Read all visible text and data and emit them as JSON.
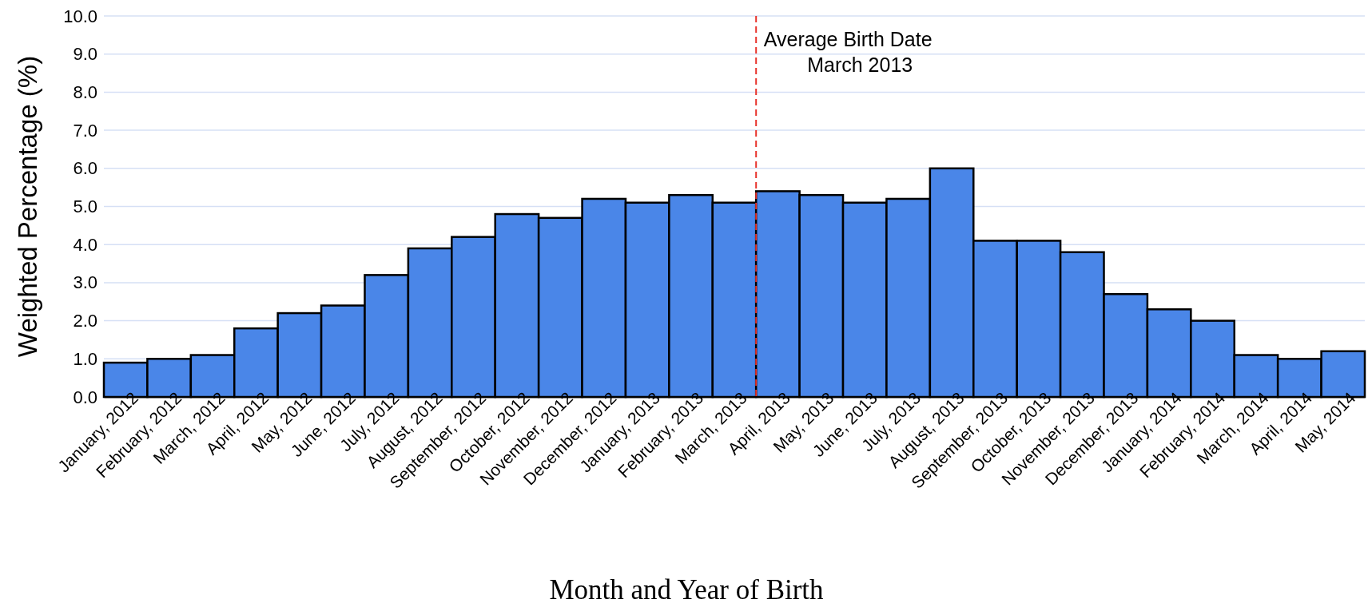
{
  "chart_data": {
    "type": "bar",
    "xlabel": "Month and Year of Birth",
    "ylabel": "Weighted Percentage (%)",
    "categories": [
      "January, 2012",
      "February, 2012",
      "March, 2012",
      "April, 2012",
      "May, 2012",
      "June, 2012",
      "July, 2012",
      "August, 2012",
      "September, 2012",
      "October, 2012",
      "November, 2012",
      "December, 2012",
      "January, 2013",
      "February, 2013",
      "March, 2013",
      "April, 2013",
      "May, 2013",
      "June, 2013",
      "July, 2013",
      "August, 2013",
      "September, 2013",
      "October, 2013",
      "November, 2013",
      "December, 2013",
      "January, 2014",
      "February, 2014",
      "March, 2014",
      "April, 2014",
      "May, 2014"
    ],
    "values": [
      0.9,
      1.0,
      1.1,
      1.8,
      2.2,
      2.4,
      3.2,
      3.9,
      4.2,
      4.8,
      4.7,
      5.2,
      5.1,
      5.3,
      5.1,
      5.4,
      5.3,
      5.1,
      5.2,
      6.0,
      4.1,
      4.1,
      3.8,
      2.7,
      2.3,
      2.0,
      1.1,
      1.0,
      1.2
    ],
    "color": "#4a86e8",
    "ylim": [
      0,
      10
    ],
    "yticks": [
      {
        "value": 0,
        "label": "0.0"
      },
      {
        "value": 1,
        "label": "1.0"
      },
      {
        "value": 2,
        "label": "2.0"
      },
      {
        "value": 3,
        "label": "3.0"
      },
      {
        "value": 4,
        "label": "4.0"
      },
      {
        "value": 5,
        "label": "5.0"
      },
      {
        "value": 6,
        "label": "6.0"
      },
      {
        "value": 7,
        "label": "7.0"
      },
      {
        "value": 8,
        "label": "8.0"
      },
      {
        "value": 9,
        "label": "9.0"
      },
      {
        "value": 10,
        "label": "10.0"
      }
    ],
    "grid": "y",
    "ref_lines": [
      {
        "axis": "x",
        "value": "March, 2013",
        "label": "Average Birth Date\nMarch 2013",
        "color": "#e8322b",
        "line_style": "dashed"
      }
    ]
  }
}
